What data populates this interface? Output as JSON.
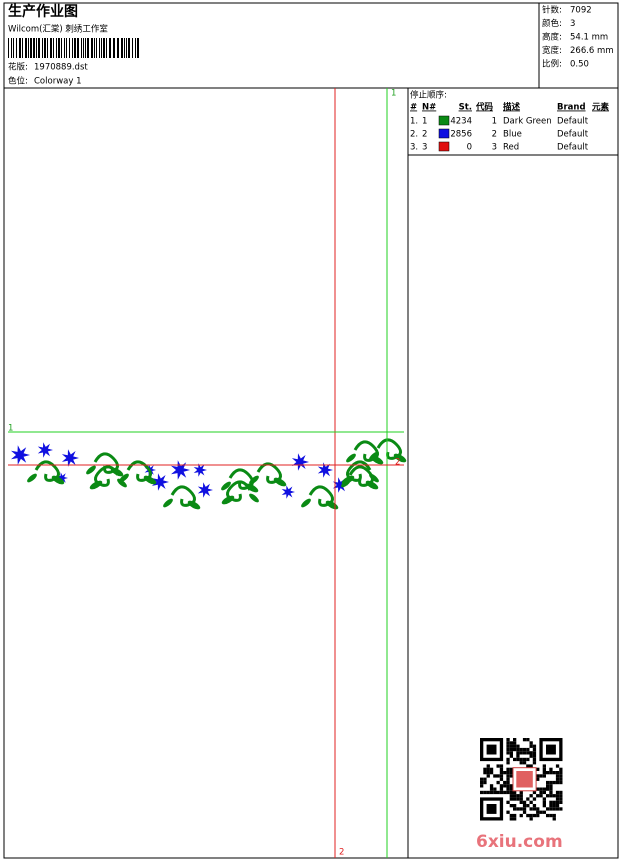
{
  "header": {
    "title": "生产作业图",
    "subtitle": "Wilcom(汇棠) 刺绣工作室",
    "design_label": "花版:",
    "design": "1970889.dst",
    "colorway_label": "色位:",
    "colorway": "Colorway 1"
  },
  "stats": [
    {
      "label": "针数:",
      "value": "7092"
    },
    {
      "label": "颜色:",
      "value": "3"
    },
    {
      "label": "高度:",
      "value": "54.1 mm"
    },
    {
      "label": "宽度:",
      "value": "266.6 mm"
    },
    {
      "label": "比例:",
      "value": "0.50"
    }
  ],
  "stop_sequence": {
    "title": "停止顺序:",
    "columns": [
      "#",
      "N#",
      "St.",
      "代码",
      "描述",
      "Brand",
      "元素"
    ],
    "rows": [
      {
        "index": "1.",
        "needle": "1",
        "color": "#0a8a14",
        "stitches": 4234,
        "code": 1,
        "description": "Dark Green",
        "brand": "Default"
      },
      {
        "index": "2.",
        "needle": "2",
        "color": "#1010e0",
        "stitches": 2856,
        "code": 2,
        "description": "Blue",
        "brand": "Default"
      },
      {
        "index": "3.",
        "needle": "3",
        "color": "#e01010",
        "stitches": 0,
        "code": 3,
        "description": "Red",
        "brand": "Default"
      }
    ]
  },
  "guides": {
    "v_green": "1",
    "h_green": "1",
    "h_red": "2",
    "v_red": "2"
  },
  "watermark": "6xiu.com"
}
